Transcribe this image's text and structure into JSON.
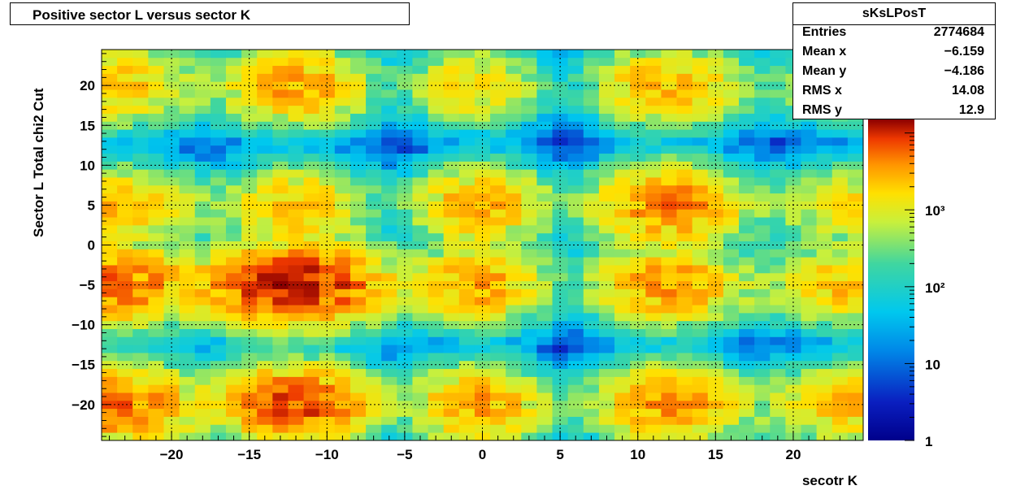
{
  "title": "Positive sector L versus sector K",
  "stats": {
    "name": "sKsLPosT",
    "rows": [
      {
        "label": "Entries",
        "value": "2774684"
      },
      {
        "label": "Mean x",
        "value": "−6.159"
      },
      {
        "label": "Mean y",
        "value": "−4.186"
      },
      {
        "label": "RMS x",
        "value": "14.08"
      },
      {
        "label": "RMS y",
        "value": "12.9"
      }
    ]
  },
  "chart_data": {
    "type": "heatmap",
    "xlabel": "secotr K",
    "ylabel": "Sector L  Total chi2 Cut",
    "xlim": [
      -24.5,
      24.5
    ],
    "ylim": [
      -24.5,
      24.5
    ],
    "xticks": [
      -20,
      -15,
      -10,
      -5,
      0,
      5,
      10,
      15,
      20
    ],
    "yticks": [
      -20,
      -15,
      -10,
      -5,
      0,
      5,
      10,
      15,
      20
    ],
    "xtick_labels": [
      "−20",
      "−15",
      "−10",
      "−5",
      "0",
      "5",
      "10",
      "15",
      "20"
    ],
    "ytick_labels": [
      "−20",
      "−15",
      "−10",
      "−5",
      "0",
      "5",
      "10",
      "15",
      "20"
    ],
    "grid": true,
    "color_scale": "log",
    "z_range": [
      1,
      15000
    ],
    "colorbar_ticks": [
      {
        "value": 1,
        "label": "1"
      },
      {
        "value": 10,
        "label": "10"
      },
      {
        "value": 100,
        "label": "10²"
      },
      {
        "value": 1000,
        "label": "10³"
      }
    ],
    "clusters": [
      {
        "xc": -12,
        "yc": -20,
        "peak": 8000,
        "sx": 2.5,
        "sy": 2.5
      },
      {
        "xc": -12,
        "yc": -5,
        "peak": 12000,
        "sx": 3,
        "sy": 2.5
      },
      {
        "xc": -12,
        "yc": 5,
        "peak": 2500,
        "sx": 2.5,
        "sy": 2.5
      },
      {
        "xc": -12,
        "yc": 20,
        "peak": 3500,
        "sx": 2.5,
        "sy": 2.5
      },
      {
        "xc": -24,
        "yc": -20,
        "peak": 6000,
        "sx": 3,
        "sy": 2.5
      },
      {
        "xc": -24,
        "yc": -5,
        "peak": 6000,
        "sx": 3,
        "sy": 2.5
      },
      {
        "xc": -24,
        "yc": 5,
        "peak": 2500,
        "sx": 3,
        "sy": 2.5
      },
      {
        "xc": -24,
        "yc": 20,
        "peak": 2500,
        "sx": 3,
        "sy": 2.5
      },
      {
        "xc": -1,
        "yc": -20,
        "peak": 2500,
        "sx": 2,
        "sy": 2.5
      },
      {
        "xc": -1,
        "yc": -5,
        "peak": 2500,
        "sx": 2,
        "sy": 2.5
      },
      {
        "xc": -1,
        "yc": 5,
        "peak": 2000,
        "sx": 2,
        "sy": 2.5
      },
      {
        "xc": -1,
        "yc": 20,
        "peak": 1500,
        "sx": 2,
        "sy": 2.5
      },
      {
        "xc": 1,
        "yc": -20,
        "peak": 1500,
        "sx": 2,
        "sy": 2.5
      },
      {
        "xc": 1,
        "yc": -5,
        "peak": 1500,
        "sx": 2,
        "sy": 2.5
      },
      {
        "xc": 1,
        "yc": 5,
        "peak": 1500,
        "sx": 2,
        "sy": 2.5
      },
      {
        "xc": 1,
        "yc": 20,
        "peak": 500,
        "sx": 2,
        "sy": 2.5
      },
      {
        "xc": 12,
        "yc": -20,
        "peak": 4000,
        "sx": 2.5,
        "sy": 2.5
      },
      {
        "xc": 12,
        "yc": -5,
        "peak": 4000,
        "sx": 2.5,
        "sy": 2.5
      },
      {
        "xc": 12,
        "yc": 5,
        "peak": 5000,
        "sx": 2.5,
        "sy": 2.5
      },
      {
        "xc": 12,
        "yc": 20,
        "peak": 3000,
        "sx": 2.5,
        "sy": 2.5
      },
      {
        "xc": 24,
        "yc": -20,
        "peak": 2500,
        "sx": 3,
        "sy": 2.5
      },
      {
        "xc": 24,
        "yc": -5,
        "peak": 2500,
        "sx": 3,
        "sy": 2.5
      },
      {
        "xc": 24,
        "yc": 5,
        "peak": 1500,
        "sx": 3,
        "sy": 2.5
      },
      {
        "xc": 24,
        "yc": 20,
        "peak": 1000,
        "sx": 3,
        "sy": 2.5
      }
    ]
  }
}
